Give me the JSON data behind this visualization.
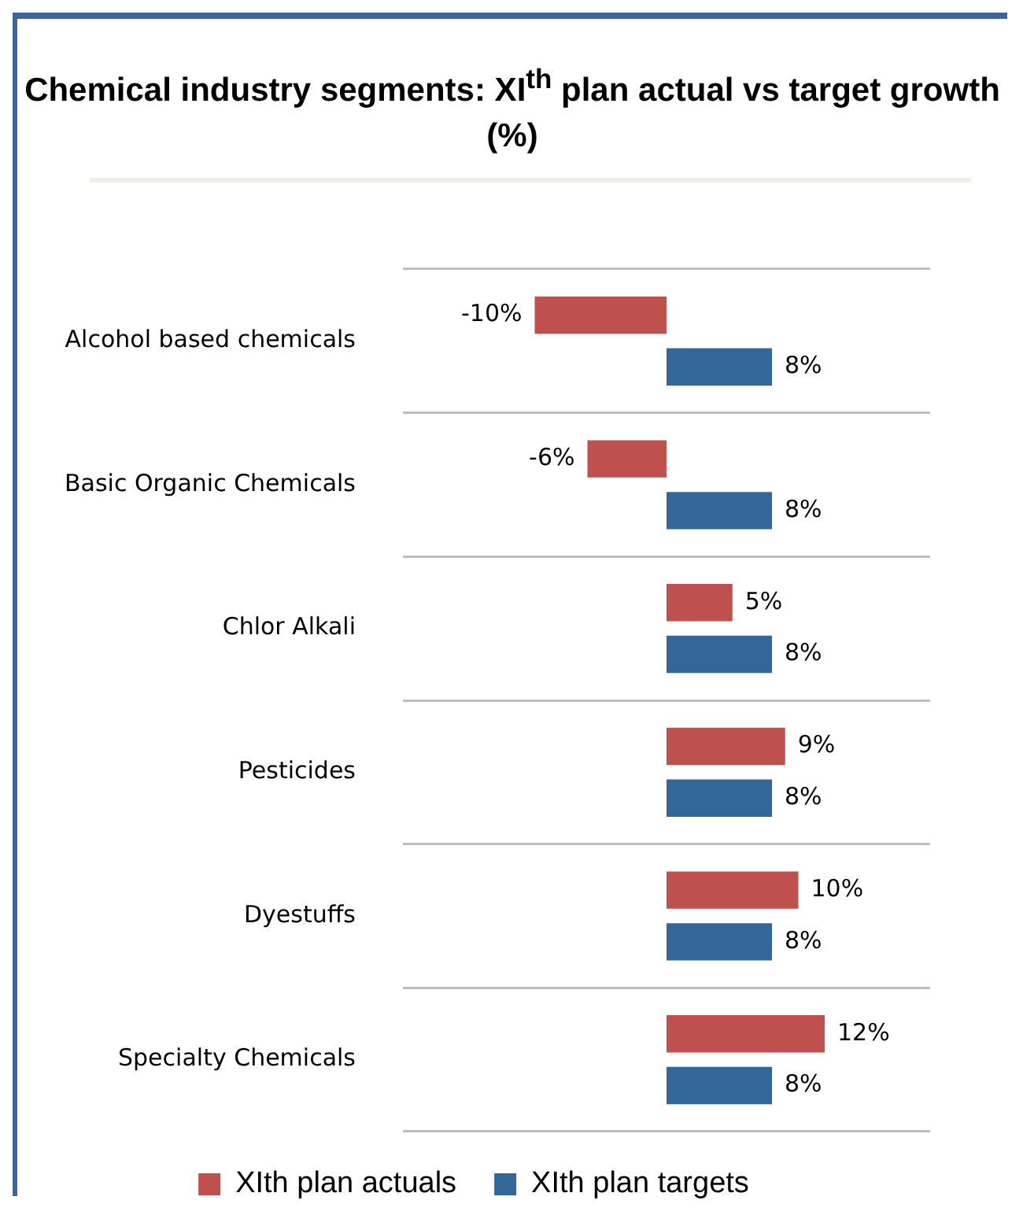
{
  "chart_data": {
    "type": "bar",
    "orientation": "horizontal",
    "title": "Chemical industry segments: XI$^{th}$ plan actual vs target growth (%)",
    "categories": [
      "Alcohol based chemicals",
      "Basic Organic Chemicals",
      "Chlor Alkali",
      "Pesticides",
      "Dyestuffs",
      "Specialty Chemicals"
    ],
    "series": [
      {
        "name": "XIth plan actuals",
        "color": "#c0504d",
        "values": [
          -10,
          -6,
          5,
          9,
          10,
          12
        ],
        "value_labels": [
          "-10%",
          "-6%",
          "5%",
          "9%",
          "10%",
          "12%"
        ]
      },
      {
        "name": "XIth plan targets",
        "color": "#336699",
        "values": [
          8,
          8,
          8,
          8,
          8,
          8
        ],
        "value_labels": [
          "8%",
          "8%",
          "8%",
          "8%",
          "8%",
          "8%"
        ]
      }
    ],
    "xlim": [
      -20,
      20
    ],
    "tick_labels": "y",
    "grid": "y",
    "legend": "bottom"
  }
}
